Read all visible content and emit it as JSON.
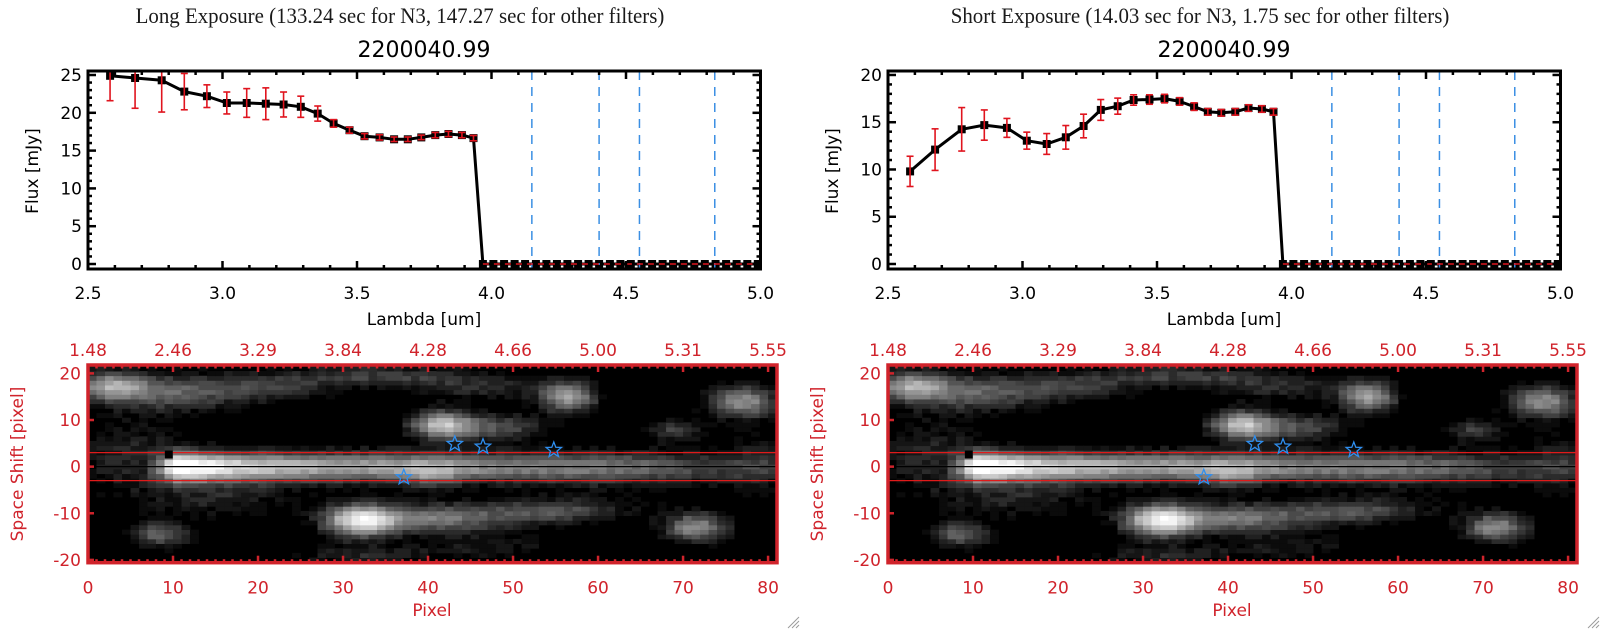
{
  "colors": {
    "data_line": "#000000",
    "marker": "#000000",
    "error_bar": "#e0141e",
    "filter_boundary": "#3b8fe3",
    "zero_line": "#e0141e",
    "axis": "#000000",
    "image_axis": "#d0232b",
    "aperture_line": "#e01a1a",
    "center_line": "#000000",
    "star": "#2f8ff0",
    "source_marker": "#000000"
  },
  "panels": [
    {
      "title": "Long Exposure (133.24 sec for N3, 147.27 sec for other filters)"
    },
    {
      "title": "Short Exposure (14.03 sec for N3, 1.75 sec for other filters)"
    }
  ],
  "chart_data": [
    {
      "type": "line",
      "panel": "Long Exposure",
      "title": "2200040.99",
      "xlabel": "Lambda [um]",
      "ylabel": "Flux [mJy]",
      "xlim": [
        2.5,
        5.0
      ],
      "ylim": [
        -0.66,
        25.53
      ],
      "xticks": [
        2.5,
        3.0,
        3.5,
        4.0,
        4.5,
        5.0
      ],
      "xtick_labels": [
        "2.5",
        "3.0",
        "3.5",
        "4.0",
        "4.5",
        "5.0"
      ],
      "x_minor_step": 0.1,
      "yticks": [
        0,
        5,
        10,
        15,
        20,
        25
      ],
      "ytick_labels": [
        "0",
        "5",
        "10",
        "15",
        "20",
        "25"
      ],
      "y_minor_step": 1,
      "grid": false,
      "series": [
        {
          "name": "Flux",
          "x": [
            2.582,
            2.675,
            2.774,
            2.858,
            2.942,
            3.016,
            3.09,
            3.161,
            3.227,
            3.291,
            3.354,
            3.413,
            3.472,
            3.528,
            3.584,
            3.638,
            3.689,
            3.739,
            3.791,
            3.84,
            3.89,
            3.933,
            3.968,
            4.007,
            4.047,
            4.086,
            4.125,
            4.165,
            4.204,
            4.243,
            4.282,
            4.322,
            4.361,
            4.4,
            4.44,
            4.479,
            4.518,
            4.558,
            4.597,
            4.636,
            4.675,
            4.715,
            4.754,
            4.793,
            4.833,
            4.872,
            4.911,
            4.951,
            4.99
          ],
          "y": [
            24.9,
            24.6,
            24.3,
            22.8,
            22.2,
            21.3,
            21.3,
            21.2,
            21.1,
            20.8,
            19.9,
            18.6,
            17.7,
            16.9,
            16.75,
            16.5,
            16.5,
            16.75,
            17.05,
            17.2,
            17.05,
            16.65,
            0,
            0,
            0,
            0,
            0,
            0,
            0,
            0,
            0,
            0,
            0,
            0,
            0,
            0,
            0,
            0,
            0,
            0,
            0,
            0,
            0,
            0,
            0,
            0,
            0,
            0,
            0
          ],
          "yerr": [
            3.3,
            4.0,
            4.2,
            2.4,
            1.5,
            1.45,
            1.9,
            2.1,
            1.65,
            1.4,
            1.0,
            0.5,
            0.4,
            0.35,
            0.35,
            0.3,
            0.3,
            0.3,
            0.35,
            0.35,
            0.35,
            0.35,
            0,
            0,
            0,
            0,
            0,
            0,
            0,
            0,
            0,
            0,
            0,
            0,
            0,
            0,
            0,
            0,
            0,
            0,
            0,
            0,
            0,
            0,
            0,
            0,
            0,
            0,
            0
          ]
        }
      ],
      "filter_boundaries": [
        4.15,
        4.4,
        4.55,
        4.83
      ],
      "zero_reference": {
        "y": 0,
        "x": [
          3.968,
          5.0
        ]
      }
    },
    {
      "type": "heatmap",
      "panel": "Long Exposure",
      "xlabel": "Pixel",
      "ylabel": "Space Shift [pixel]",
      "xlim": [
        0,
        81.05
      ],
      "ylim": [
        -20.6,
        21.8
      ],
      "xticks": [
        0,
        10,
        20,
        30,
        40,
        50,
        60,
        70,
        80
      ],
      "xtick_labels": [
        "0",
        "10",
        "20",
        "30",
        "40",
        "50",
        "60",
        "70",
        "80"
      ],
      "x_minor_step": 1,
      "top_xtick_labels": [
        "1.48",
        "2.46",
        "3.29",
        "3.84",
        "4.28",
        "4.66",
        "5.00",
        "5.31",
        "5.55"
      ],
      "yticks": [
        20,
        10,
        0,
        -10,
        -20
      ],
      "ytick_labels": [
        "20",
        "10",
        "0",
        "-10",
        "-20"
      ],
      "colormap": "grayscale",
      "center_line": 0,
      "aperture": [
        -3,
        3
      ],
      "source_marker": {
        "x": 9.5,
        "y": 2.6
      },
      "star_markers": [
        {
          "x": 43.15,
          "y": 4.86
        },
        {
          "x": 46.46,
          "y": 4.28
        },
        {
          "x": 54.79,
          "y": 3.57
        },
        {
          "x": 37.15,
          "y": -2.28
        }
      ],
      "image_model": {
        "columns": 81,
        "trace": {
          "y": 0,
          "sigma": 2.3,
          "profile": [
            [
              7,
              0.12
            ],
            [
              9,
              0.5
            ],
            [
              10,
              1.0
            ],
            [
              13,
              1.0
            ],
            [
              17,
              0.88
            ],
            [
              22,
              0.78
            ],
            [
              30,
              0.7
            ],
            [
              38,
              0.67
            ],
            [
              45,
              0.6
            ],
            [
              52,
              0.52
            ],
            [
              60,
              0.45
            ],
            [
              68,
              0.35
            ],
            [
              75,
              0.25
            ],
            [
              81,
              0.18
            ]
          ]
        },
        "sources": [
          {
            "x": 2.5,
            "y": 17.5,
            "sx": 3,
            "sy": 2.2,
            "amp": 0.55
          },
          {
            "x": 10,
            "y": 16,
            "sx": 6,
            "sy": 2.8,
            "amp": 0.42
          },
          {
            "x": 22,
            "y": 17,
            "sx": 5,
            "sy": 2,
            "amp": 0.25
          },
          {
            "x": 34,
            "y": 19.5,
            "sx": 8,
            "sy": 1.6,
            "amp": 0.3
          },
          {
            "x": 46,
            "y": 17,
            "sx": 6,
            "sy": 2,
            "amp": 0.22
          },
          {
            "x": 41.5,
            "y": 9,
            "sx": 2.6,
            "sy": 2.2,
            "amp": 0.72
          },
          {
            "x": 48,
            "y": 8.5,
            "sx": 4,
            "sy": 2,
            "amp": 0.38
          },
          {
            "x": 56.5,
            "y": 15,
            "sx": 2.4,
            "sy": 2.4,
            "amp": 0.62
          },
          {
            "x": 77,
            "y": 14,
            "sx": 2.8,
            "sy": 2.4,
            "amp": 0.6
          },
          {
            "x": 69,
            "y": 8,
            "sx": 2.5,
            "sy": 1.8,
            "amp": 0.3
          },
          {
            "x": 40.5,
            "y": -2,
            "sx": 2.2,
            "sy": 2.2,
            "amp": 0.22
          },
          {
            "x": 32,
            "y": -11.5,
            "sx": 3,
            "sy": 2.5,
            "amp": 0.85
          },
          {
            "x": 41,
            "y": -11,
            "sx": 6,
            "sy": 2.2,
            "amp": 0.5
          },
          {
            "x": 55,
            "y": -9.5,
            "sx": 6,
            "sy": 2,
            "amp": 0.35
          },
          {
            "x": 71.5,
            "y": -13,
            "sx": 2.6,
            "sy": 2.2,
            "amp": 0.6
          },
          {
            "x": 8.5,
            "y": -14.5,
            "sx": 2.6,
            "sy": 2,
            "amp": 0.42
          },
          {
            "x": 5,
            "y": 2,
            "sx": 5,
            "sy": 6,
            "amp": 0.22
          },
          {
            "x": 16,
            "y": -7,
            "sx": 6,
            "sy": 3,
            "amp": 0.2
          },
          {
            "x": 32,
            "y": -19,
            "sx": 6,
            "sy": 1.5,
            "amp": 0.22
          },
          {
            "x": 47,
            "y": -17,
            "sx": 6,
            "sy": 2,
            "amp": 0.18
          },
          {
            "x": 62,
            "y": -2,
            "sx": 8,
            "sy": 4,
            "amp": 0.1
          },
          {
            "x": 79,
            "y": 1,
            "sx": 3,
            "sy": 6,
            "amp": 0.15
          }
        ],
        "noise_amplitude": 0.1,
        "noise_seed": 11,
        "black_level": 0.1,
        "white_level": 1.0,
        "gray_levels": 24
      }
    },
    {
      "type": "line",
      "panel": "Short Exposure",
      "title": "2200040.99",
      "xlabel": "Lambda [um]",
      "ylabel": "Flux [mJy]",
      "xlim": [
        2.5,
        5.0
      ],
      "ylim": [
        -0.53,
        20.42
      ],
      "xticks": [
        2.5,
        3.0,
        3.5,
        4.0,
        4.5,
        5.0
      ],
      "xtick_labels": [
        "2.5",
        "3.0",
        "3.5",
        "4.0",
        "4.5",
        "5.0"
      ],
      "x_minor_step": 0.1,
      "yticks": [
        0,
        5,
        10,
        15,
        20
      ],
      "ytick_labels": [
        "0",
        "5",
        "10",
        "15",
        "20"
      ],
      "y_minor_step": 1,
      "grid": false,
      "series": [
        {
          "name": "Flux",
          "x": [
            2.582,
            2.675,
            2.774,
            2.858,
            2.942,
            3.016,
            3.09,
            3.161,
            3.227,
            3.291,
            3.354,
            3.413,
            3.472,
            3.528,
            3.584,
            3.638,
            3.689,
            3.739,
            3.791,
            3.84,
            3.89,
            3.933,
            3.968,
            4.007,
            4.047,
            4.086,
            4.125,
            4.165,
            4.204,
            4.243,
            4.282,
            4.322,
            4.361,
            4.4,
            4.44,
            4.479,
            4.518,
            4.558,
            4.597,
            4.636,
            4.675,
            4.715,
            4.754,
            4.793,
            4.833,
            4.872,
            4.911,
            4.951,
            4.99
          ],
          "y": [
            9.8,
            12.1,
            14.25,
            14.7,
            14.4,
            13.05,
            12.7,
            13.4,
            14.6,
            16.3,
            16.7,
            17.35,
            17.4,
            17.5,
            17.2,
            16.65,
            16.1,
            16.0,
            16.1,
            16.5,
            16.4,
            16.1,
            0,
            0,
            0,
            0,
            0,
            0,
            0,
            0,
            0,
            0,
            0,
            0,
            0,
            0,
            0,
            0,
            0,
            0,
            0,
            0,
            0,
            0,
            0,
            0,
            0,
            0,
            0
          ],
          "yerr": [
            1.6,
            2.2,
            2.3,
            1.6,
            1.0,
            0.9,
            1.1,
            1.25,
            1.25,
            1.1,
            0.85,
            0.55,
            0.5,
            0.45,
            0.4,
            0.4,
            0.35,
            0.35,
            0.35,
            0.35,
            0.35,
            0.35,
            0,
            0,
            0,
            0,
            0,
            0,
            0,
            0,
            0,
            0,
            0,
            0,
            0,
            0,
            0,
            0,
            0,
            0,
            0,
            0,
            0,
            0,
            0,
            0,
            0,
            0,
            0
          ]
        }
      ],
      "filter_boundaries": [
        4.15,
        4.4,
        4.55,
        4.83
      ],
      "zero_reference": {
        "y": 0,
        "x": [
          3.968,
          5.0
        ]
      }
    },
    {
      "type": "heatmap",
      "panel": "Short Exposure",
      "xlabel": "Pixel",
      "ylabel": "Space Shift [pixel]",
      "xlim": [
        0,
        81.05
      ],
      "ylim": [
        -20.6,
        21.8
      ],
      "xticks": [
        0,
        10,
        20,
        30,
        40,
        50,
        60,
        70,
        80
      ],
      "xtick_labels": [
        "0",
        "10",
        "20",
        "30",
        "40",
        "50",
        "60",
        "70",
        "80"
      ],
      "x_minor_step": 1,
      "top_xtick_labels": [
        "1.48",
        "2.46",
        "3.29",
        "3.84",
        "4.28",
        "4.66",
        "5.00",
        "5.31",
        "5.55"
      ],
      "yticks": [
        20,
        10,
        0,
        -10,
        -20
      ],
      "ytick_labels": [
        "20",
        "10",
        "0",
        "-10",
        "-20"
      ],
      "colormap": "grayscale",
      "center_line": 0,
      "aperture": [
        -3,
        3
      ],
      "source_marker": {
        "x": 9.5,
        "y": 2.6
      },
      "star_markers": [
        {
          "x": 43.15,
          "y": 4.86
        },
        {
          "x": 46.46,
          "y": 4.28
        },
        {
          "x": 54.79,
          "y": 3.57
        },
        {
          "x": 37.15,
          "y": -2.28
        }
      ],
      "image_model": {
        "columns": 81,
        "trace": {
          "y": 0,
          "sigma": 2.3,
          "profile": [
            [
              7,
              0.12
            ],
            [
              9,
              0.5
            ],
            [
              10,
              1.0
            ],
            [
              13,
              1.0
            ],
            [
              17,
              0.88
            ],
            [
              22,
              0.78
            ],
            [
              30,
              0.7
            ],
            [
              38,
              0.67
            ],
            [
              45,
              0.6
            ],
            [
              52,
              0.52
            ],
            [
              60,
              0.45
            ],
            [
              68,
              0.35
            ],
            [
              75,
              0.25
            ],
            [
              81,
              0.18
            ]
          ]
        },
        "sources": [
          {
            "x": 2.5,
            "y": 17.5,
            "sx": 3,
            "sy": 2.2,
            "amp": 0.55
          },
          {
            "x": 10,
            "y": 16,
            "sx": 6,
            "sy": 2.8,
            "amp": 0.42
          },
          {
            "x": 22,
            "y": 17,
            "sx": 5,
            "sy": 2,
            "amp": 0.25
          },
          {
            "x": 34,
            "y": 19.5,
            "sx": 8,
            "sy": 1.6,
            "amp": 0.3
          },
          {
            "x": 46,
            "y": 17,
            "sx": 6,
            "sy": 2,
            "amp": 0.22
          },
          {
            "x": 41.5,
            "y": 9,
            "sx": 2.6,
            "sy": 2.2,
            "amp": 0.72
          },
          {
            "x": 48,
            "y": 8.5,
            "sx": 4,
            "sy": 2,
            "amp": 0.38
          },
          {
            "x": 56.5,
            "y": 15,
            "sx": 2.4,
            "sy": 2.4,
            "amp": 0.62
          },
          {
            "x": 77,
            "y": 14,
            "sx": 2.8,
            "sy": 2.4,
            "amp": 0.6
          },
          {
            "x": 69,
            "y": 8,
            "sx": 2.5,
            "sy": 1.8,
            "amp": 0.3
          },
          {
            "x": 40.5,
            "y": -2,
            "sx": 2.2,
            "sy": 2.2,
            "amp": 0.22
          },
          {
            "x": 32,
            "y": -11.5,
            "sx": 3,
            "sy": 2.5,
            "amp": 0.85
          },
          {
            "x": 41,
            "y": -11,
            "sx": 6,
            "sy": 2.2,
            "amp": 0.5
          },
          {
            "x": 55,
            "y": -9.5,
            "sx": 6,
            "sy": 2,
            "amp": 0.35
          },
          {
            "x": 71.5,
            "y": -13,
            "sx": 2.6,
            "sy": 2.2,
            "amp": 0.6
          },
          {
            "x": 8.5,
            "y": -14.5,
            "sx": 2.6,
            "sy": 2,
            "amp": 0.42
          },
          {
            "x": 5,
            "y": 2,
            "sx": 5,
            "sy": 6,
            "amp": 0.22
          },
          {
            "x": 16,
            "y": -7,
            "sx": 6,
            "sy": 3,
            "amp": 0.2
          },
          {
            "x": 32,
            "y": -19,
            "sx": 6,
            "sy": 1.5,
            "amp": 0.22
          },
          {
            "x": 47,
            "y": -17,
            "sx": 6,
            "sy": 2,
            "amp": 0.18
          },
          {
            "x": 62,
            "y": -2,
            "sx": 8,
            "sy": 4,
            "amp": 0.1
          },
          {
            "x": 79,
            "y": 1,
            "sx": 3,
            "sy": 6,
            "amp": 0.15
          }
        ],
        "noise_amplitude": 0.1,
        "noise_seed": 11,
        "black_level": 0.1,
        "white_level": 1.0,
        "gray_levels": 24
      }
    }
  ]
}
